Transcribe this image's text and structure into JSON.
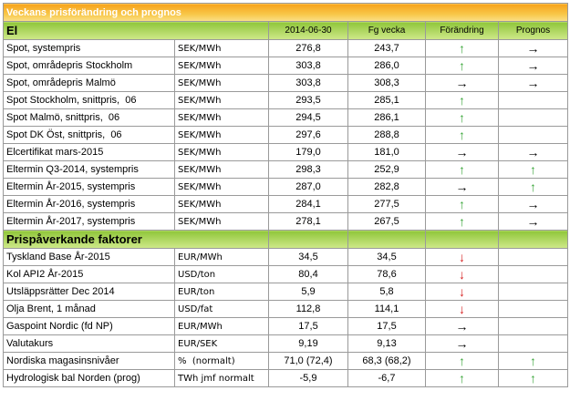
{
  "title": "Veckans prisförändring och prognos",
  "columns": [
    "2014-06-30",
    "Fg vecka",
    "Förändring",
    "Prognos"
  ],
  "arrow_colors": {
    "↑": "#3aa63a",
    "↓": "#d61f1f",
    "→": "#000000"
  },
  "sections": [
    {
      "title": "El",
      "rows": [
        {
          "label": "Spot, systempris",
          "unit": "SEK/MWh",
          "current": "276,8",
          "previous": "243,7",
          "change": "↑",
          "forecast": "→"
        },
        {
          "label": "Spot, områdepris Stockholm",
          "unit": "SEK/MWh",
          "current": "303,8",
          "previous": "286,0",
          "change": "↑",
          "forecast": "→"
        },
        {
          "label": "Spot, områdepris Malmö",
          "unit": "SEK/MWh",
          "current": "303,8",
          "previous": "308,3",
          "change": "→",
          "forecast": "→"
        },
        {
          "label": "Spot Stockholm, snittpris,  06",
          "unit": "SEK/MWh",
          "current": "293,5",
          "previous": "285,1",
          "change": "↑",
          "forecast": null
        },
        {
          "label": "Spot Malmö, snittpris,  06",
          "unit": "SEK/MWh",
          "current": "294,5",
          "previous": "286,1",
          "change": "↑",
          "forecast": null
        },
        {
          "label": "Spot DK Öst, snittpris,  06",
          "unit": "SEK/MWh",
          "current": "297,6",
          "previous": "288,8",
          "change": "↑",
          "forecast": null
        },
        {
          "label": "Elcertifikat mars-2015",
          "unit": "SEK/MWh",
          "current": "179,0",
          "previous": "181,0",
          "change": "→",
          "forecast": "→"
        },
        {
          "label": "Eltermin Q3-2014, systempris",
          "unit": "SEK/MWh",
          "current": "298,3",
          "previous": "252,9",
          "change": "↑",
          "forecast": "↑"
        },
        {
          "label": "Eltermin År-2015, systempris",
          "unit": "SEK/MWh",
          "current": "287,0",
          "previous": "282,8",
          "change": "→",
          "forecast": "↑"
        },
        {
          "label": "Eltermin År-2016, systempris",
          "unit": "SEK/MWh",
          "current": "284,1",
          "previous": "277,5",
          "change": "↑",
          "forecast": "→"
        },
        {
          "label": "Eltermin År-2017, systempris",
          "unit": "SEK/MWh",
          "current": "278,1",
          "previous": "267,5",
          "change": "↑",
          "forecast": "→"
        }
      ]
    },
    {
      "title": "Prispåverkande faktorer",
      "rows": [
        {
          "label": "Tyskland Base År-2015",
          "unit": "EUR/MWh",
          "current": "34,5",
          "previous": "34,5",
          "change": "↓",
          "forecast": null
        },
        {
          "label": "Kol API2 År-2015",
          "unit": "USD/ton",
          "current": "80,4",
          "previous": "78,6",
          "change": "↓",
          "forecast": null
        },
        {
          "label": "Utsläppsrätter Dec 2014",
          "unit": "EUR/ton",
          "current": "5,9",
          "previous": "5,8",
          "change": "↓",
          "forecast": null
        },
        {
          "label": "Olja Brent, 1 månad",
          "unit": "USD/fat",
          "current": "112,8",
          "previous": "114,1",
          "change": "↓",
          "forecast": null
        },
        {
          "label": "Gaspoint Nordic (fd NP)",
          "unit": "EUR/MWh",
          "current": "17,5",
          "previous": "17,5",
          "change": "→",
          "forecast": null
        },
        {
          "label": "Valutakurs",
          "unit": "EUR/SEK",
          "current": "9,19",
          "previous": "9,13",
          "change": "→",
          "forecast": null
        },
        {
          "label": "Nordiska magasinsnivåer",
          "unit": "%  (normalt)",
          "current": "71,0 (72,4)",
          "previous": "68,3 (68,2)",
          "change": "↑",
          "forecast": "↑"
        },
        {
          "label": "Hydrologisk bal Norden (prog)",
          "unit": "TWh jmf normalt",
          "current": "-5,9",
          "previous": "-6,7",
          "change": "↑",
          "forecast": "↑"
        }
      ]
    }
  ]
}
